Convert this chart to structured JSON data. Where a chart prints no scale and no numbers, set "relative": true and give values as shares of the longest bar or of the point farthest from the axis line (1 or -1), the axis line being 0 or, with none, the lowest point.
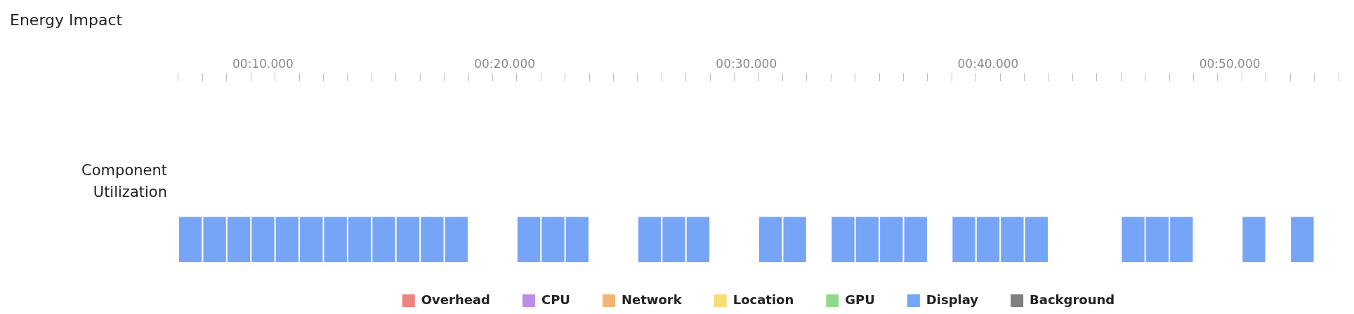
{
  "chart_data": {
    "type": "bar",
    "title": "Energy Impact",
    "ylabel": "Component Utilization",
    "relative": true,
    "legend": "bottom",
    "categories": [
      null,
      null,
      null,
      "00:10.000",
      null,
      null,
      null,
      null,
      null,
      null,
      null,
      null,
      null,
      "00:20.000",
      null,
      null,
      null,
      null,
      null,
      null,
      null,
      null,
      null,
      "00:30.000",
      null,
      null,
      null,
      null,
      null,
      null,
      null,
      null,
      null,
      "00:40.000",
      null,
      null,
      null,
      null,
      null,
      null,
      null,
      null,
      null,
      "00:50.000",
      null,
      null,
      null,
      null
    ],
    "series": [
      {
        "name": "Overhead",
        "color": "#ee8480",
        "values": [
          null,
          null,
          null,
          null,
          null,
          null,
          null,
          null,
          null,
          null,
          null,
          null,
          null,
          null,
          null,
          null,
          null,
          null,
          null,
          null,
          null,
          null,
          null,
          null,
          null,
          null,
          null,
          null,
          null,
          null,
          null,
          null,
          null,
          null,
          null,
          null,
          null,
          null,
          null,
          null,
          null,
          null,
          null,
          null,
          null,
          null,
          null,
          null
        ]
      },
      {
        "name": "CPU",
        "color": "#bd8ce6",
        "values": [
          null,
          null,
          null,
          null,
          null,
          null,
          null,
          null,
          null,
          null,
          null,
          null,
          null,
          null,
          null,
          null,
          null,
          null,
          null,
          null,
          null,
          null,
          null,
          null,
          null,
          null,
          null,
          null,
          null,
          null,
          null,
          null,
          null,
          null,
          null,
          null,
          null,
          null,
          null,
          null,
          null,
          null,
          null,
          null,
          null,
          null,
          null,
          null
        ]
      },
      {
        "name": "Network",
        "color": "#f4b574",
        "values": [
          null,
          null,
          null,
          null,
          null,
          null,
          null,
          null,
          null,
          null,
          null,
          null,
          null,
          null,
          null,
          null,
          null,
          null,
          null,
          null,
          null,
          null,
          null,
          null,
          null,
          null,
          null,
          null,
          null,
          null,
          null,
          null,
          null,
          null,
          null,
          null,
          null,
          null,
          null,
          null,
          null,
          null,
          null,
          null,
          null,
          null,
          null,
          null
        ]
      },
      {
        "name": "Location",
        "color": "#f9db76",
        "values": [
          null,
          null,
          null,
          null,
          null,
          null,
          null,
          null,
          null,
          null,
          null,
          null,
          null,
          null,
          null,
          null,
          null,
          null,
          null,
          null,
          null,
          null,
          null,
          null,
          null,
          null,
          null,
          null,
          null,
          null,
          null,
          null,
          null,
          null,
          null,
          null,
          null,
          null,
          null,
          null,
          null,
          null,
          null,
          null,
          null,
          null,
          null,
          null
        ]
      },
      {
        "name": "GPU",
        "color": "#91d98a",
        "values": [
          null,
          null,
          null,
          null,
          null,
          null,
          null,
          null,
          null,
          null,
          null,
          null,
          null,
          null,
          null,
          null,
          null,
          null,
          null,
          null,
          null,
          null,
          null,
          null,
          null,
          null,
          null,
          null,
          null,
          null,
          null,
          null,
          null,
          null,
          null,
          null,
          null,
          null,
          null,
          null,
          null,
          null,
          null,
          null,
          null,
          null,
          null,
          null
        ]
      },
      {
        "name": "Display",
        "color": "#76a5f7",
        "values": [
          1,
          1,
          1,
          1,
          1,
          1,
          1,
          1,
          1,
          1,
          1,
          1,
          null,
          null,
          1,
          1,
          1,
          null,
          null,
          1,
          1,
          1,
          null,
          null,
          1,
          1,
          null,
          1,
          1,
          1,
          1,
          null,
          1,
          1,
          1,
          1,
          null,
          null,
          null,
          1,
          1,
          1,
          null,
          null,
          1,
          null,
          1,
          null
        ]
      },
      {
        "name": "Background",
        "color": "#808080",
        "values": [
          null,
          null,
          null,
          null,
          null,
          null,
          null,
          null,
          null,
          null,
          null,
          null,
          null,
          null,
          null,
          null,
          null,
          null,
          null,
          null,
          null,
          null,
          null,
          null,
          null,
          null,
          null,
          null,
          null,
          null,
          null,
          null,
          null,
          null,
          null,
          null,
          null,
          null,
          null,
          null,
          null,
          null,
          null,
          null,
          null,
          null,
          null,
          null
        ]
      }
    ]
  }
}
